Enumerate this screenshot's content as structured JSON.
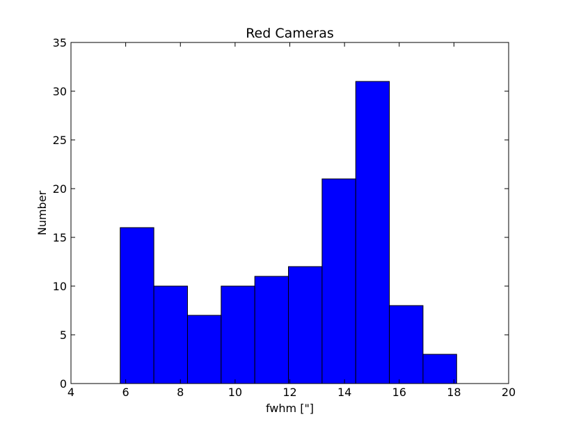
{
  "chart_data": {
    "type": "bar",
    "title": "Red Cameras",
    "xlabel": "fwhm [\"]",
    "ylabel": "Number",
    "xlim": [
      4,
      20
    ],
    "ylim": [
      0,
      35
    ],
    "xticks": [
      "4",
      "6",
      "8",
      "10",
      "12",
      "14",
      "16",
      "18",
      "20"
    ],
    "yticks": [
      "0",
      "5",
      "10",
      "15",
      "20",
      "25",
      "30",
      "35"
    ],
    "bins": [
      [
        5.8,
        7.03
      ],
      [
        7.03,
        8.26
      ],
      [
        8.26,
        9.49
      ],
      [
        9.49,
        10.72
      ],
      [
        10.72,
        11.95
      ],
      [
        11.95,
        13.18
      ],
      [
        13.18,
        14.41
      ],
      [
        14.41,
        15.64
      ],
      [
        15.64,
        16.87
      ],
      [
        16.87,
        18.1
      ]
    ],
    "values": [
      16,
      10,
      7,
      10,
      11,
      12,
      21,
      31,
      8,
      3
    ],
    "bar_color": "#0000ff",
    "edge_color": "#000000",
    "grid": false
  }
}
